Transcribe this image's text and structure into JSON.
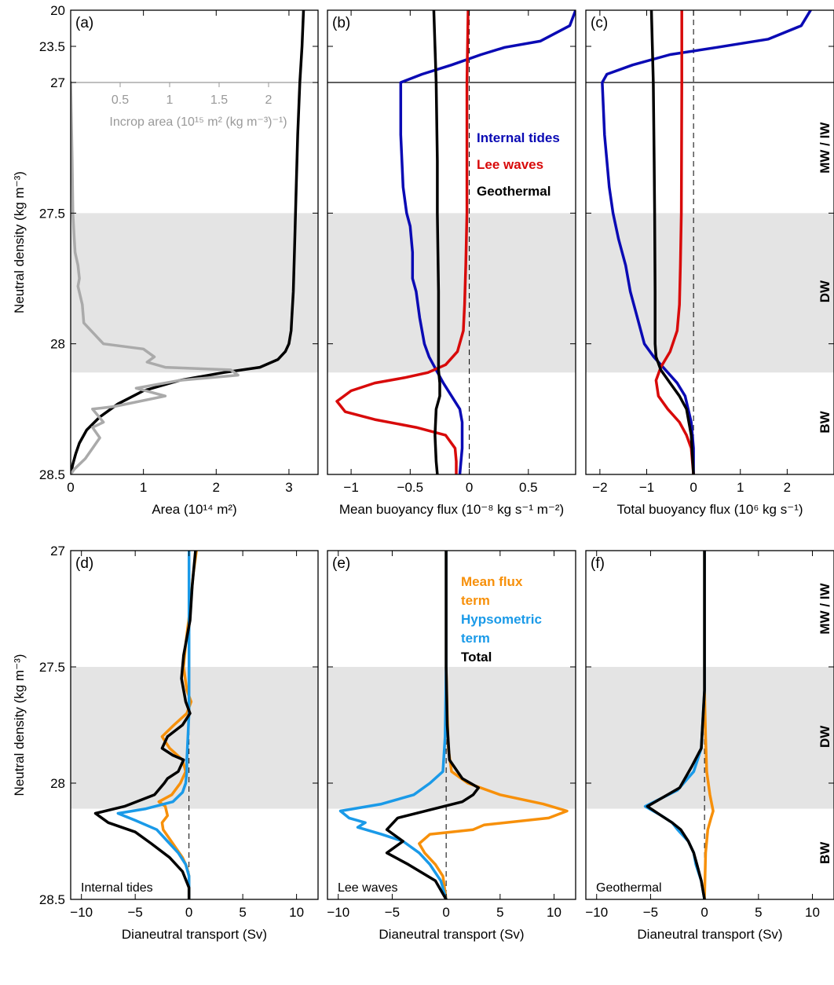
{
  "colors": {
    "band": "#e4e4e4",
    "axis": "#000000",
    "internal_tides": "#0a0ab4",
    "lee_waves": "#d80a0a",
    "geothermal": "#000000",
    "mean_flux_term": "#f7900a",
    "hypsometric_term": "#1a9ae8",
    "total": "#000000",
    "incrop": "#aaaaaa"
  },
  "water_masses": [
    "MW / IW",
    "DW",
    "BW"
  ],
  "common": {
    "ylabel": "Neutral density (kg m⁻³)",
    "dianeutral_xlabel": "Dianeutral transport (Sv)"
  },
  "chart_data": [
    {
      "id": "a",
      "panel_label": "(a)",
      "type": "line",
      "xlabel": "Area (10¹⁴ m²)",
      "xlim": [
        0,
        3.4
      ],
      "xticks": [
        "0",
        "1",
        "2",
        "3"
      ],
      "ylim": [
        28.5,
        20
      ],
      "y_axis_break": {
        "upper": [
          "20",
          "23.5",
          "27"
        ],
        "lower": [
          "27.5",
          "28",
          "28.5"
        ]
      },
      "inset_axis": {
        "label": "Incrop area (10¹⁵ m² (kg m⁻³)⁻¹)",
        "ticks": [
          "0.5",
          "1",
          "1.5",
          "2"
        ],
        "xlim": [
          0,
          2.5
        ]
      },
      "series": [
        {
          "name": "Area",
          "color_key": "axis",
          "x": [
            3.2,
            3.18,
            3.15,
            3.12,
            3.1,
            3.08,
            3.06,
            3.04,
            3.03,
            3.0,
            2.95,
            2.85,
            2.6,
            2.1,
            1.5,
            1.0,
            0.65,
            0.4,
            0.22,
            0.12,
            0.07,
            0.03,
            0.0
          ],
          "y": [
            20,
            23.5,
            27,
            27.2,
            27.4,
            27.6,
            27.8,
            27.9,
            27.95,
            28.0,
            28.03,
            28.06,
            28.09,
            28.11,
            28.14,
            28.18,
            28.23,
            28.28,
            28.33,
            28.38,
            28.42,
            28.46,
            28.5
          ]
        },
        {
          "name": "Incrop area",
          "color_key": "incrop",
          "x": [
            0.0,
            0.02,
            0.03,
            0.05,
            0.06,
            0.1,
            0.12,
            0.1,
            0.16,
            0.18,
            0.45,
            1.0,
            1.15,
            1.05,
            1.3,
            2.2,
            2.3,
            1.5,
            0.9,
            1.3,
            0.6,
            0.3,
            0.45,
            0.3,
            0.4,
            0.3,
            0.2,
            0.05,
            0.0
          ],
          "y": [
            27.0,
            27.3,
            27.5,
            27.6,
            27.65,
            27.7,
            27.75,
            27.78,
            27.85,
            27.92,
            28.0,
            28.02,
            28.05,
            28.07,
            28.09,
            28.1,
            28.12,
            28.14,
            28.17,
            28.2,
            28.24,
            28.25,
            28.3,
            28.32,
            28.36,
            28.4,
            28.44,
            28.48,
            28.5
          ]
        }
      ]
    },
    {
      "id": "b",
      "panel_label": "(b)",
      "type": "line",
      "xlabel": "Mean buoyancy flux (10⁻⁸ kg s⁻¹ m⁻²)",
      "xlim": [
        -1.2,
        0.9
      ],
      "xticks": [
        "-1",
        "-0.5",
        "0",
        "0.5"
      ],
      "ylim": [
        28.5,
        20
      ],
      "y_axis_break": {
        "upper": [
          "20",
          "23.5",
          "27"
        ],
        "lower": [
          "27.5",
          "28",
          "28.5"
        ]
      },
      "legend": [
        "Internal tides",
        "Lee waves",
        "Geothermal"
      ],
      "series": [
        {
          "name": "Internal tides",
          "color_key": "internal_tides",
          "x": [
            0.9,
            0.85,
            0.6,
            0.3,
            0.1,
            -0.15,
            -0.4,
            -0.58,
            -0.58,
            -0.56,
            -0.53,
            -0.5,
            -0.48,
            -0.48,
            -0.45,
            -0.42,
            -0.38,
            -0.34,
            -0.28,
            -0.22,
            -0.15,
            -0.08,
            -0.06,
            -0.06,
            -0.08
          ],
          "y": [
            20,
            21.5,
            23.0,
            23.6,
            24.3,
            25.3,
            26.2,
            27.0,
            27.2,
            27.4,
            27.5,
            27.55,
            27.65,
            27.75,
            27.8,
            27.9,
            28.0,
            28.05,
            28.1,
            28.15,
            28.2,
            28.25,
            28.3,
            28.4,
            28.5
          ]
        },
        {
          "name": "Lee waves",
          "color_key": "lee_waves",
          "x": [
            -0.01,
            -0.02,
            -0.02,
            -0.03,
            -0.04,
            -0.05,
            -0.1,
            -0.2,
            -0.35,
            -0.55,
            -0.8,
            -1.0,
            -1.12,
            -1.05,
            -0.8,
            -0.45,
            -0.2,
            -0.12,
            -0.11,
            -0.11
          ],
          "y": [
            20,
            27.0,
            27.5,
            27.7,
            27.85,
            27.95,
            28.03,
            28.08,
            28.11,
            28.13,
            28.15,
            28.18,
            28.22,
            28.26,
            28.29,
            28.32,
            28.35,
            28.4,
            28.45,
            28.5
          ]
        },
        {
          "name": "Geothermal",
          "color_key": "geothermal",
          "x": [
            -0.3,
            -0.29,
            -0.28,
            -0.27,
            -0.27,
            -0.26,
            -0.26,
            -0.26,
            -0.25,
            -0.25,
            -0.28,
            -0.29,
            -0.28,
            -0.27
          ],
          "y": [
            20,
            23.5,
            27.0,
            27.3,
            27.5,
            27.8,
            28.0,
            28.1,
            28.15,
            28.2,
            28.25,
            28.35,
            28.45,
            28.5
          ]
        }
      ]
    },
    {
      "id": "c",
      "panel_label": "(c)",
      "type": "line",
      "xlabel": "Total buoyancy flux (10⁶ kg s⁻¹)",
      "xlim": [
        -2.3,
        3.0
      ],
      "xticks": [
        "-2",
        "-1",
        "0",
        "1",
        "2"
      ],
      "ylim": [
        28.5,
        20
      ],
      "y_axis_break": {
        "upper": [
          "20",
          "23.5",
          "27"
        ],
        "lower": [
          "27.5",
          "28",
          "28.5"
        ]
      },
      "series": [
        {
          "name": "Internal tides",
          "color_key": "internal_tides",
          "x": [
            2.5,
            2.3,
            1.6,
            0.5,
            -0.5,
            -1.3,
            -1.85,
            -1.95,
            -1.9,
            -1.8,
            -1.72,
            -1.6,
            -1.45,
            -1.35,
            -1.2,
            -1.05,
            -0.85,
            -0.6,
            -0.35,
            -0.18,
            -0.05,
            0.0,
            0.0
          ],
          "y": [
            20,
            21.5,
            22.8,
            23.6,
            24.3,
            25.3,
            26.2,
            27.0,
            27.2,
            27.4,
            27.5,
            27.6,
            27.7,
            27.8,
            27.9,
            28.0,
            28.05,
            28.1,
            28.15,
            28.2,
            28.3,
            28.4,
            28.5
          ]
        },
        {
          "name": "Lee waves",
          "color_key": "lee_waves",
          "x": [
            -0.25,
            -0.25,
            -0.26,
            -0.28,
            -0.3,
            -0.35,
            -0.5,
            -0.7,
            -0.8,
            -0.75,
            -0.55,
            -0.3,
            -0.15,
            -0.05,
            0.0
          ],
          "y": [
            20,
            27.0,
            27.5,
            27.7,
            27.85,
            27.95,
            28.03,
            28.09,
            28.14,
            28.2,
            28.25,
            28.3,
            28.35,
            28.4,
            28.5
          ]
        },
        {
          "name": "Geothermal",
          "color_key": "geothermal",
          "x": [
            -0.9,
            -0.88,
            -0.86,
            -0.84,
            -0.83,
            -0.82,
            -0.82,
            -0.8,
            -0.7,
            -0.5,
            -0.3,
            -0.15,
            -0.05,
            0.0
          ],
          "y": [
            20,
            23.5,
            27.0,
            27.3,
            27.5,
            27.8,
            28.0,
            28.05,
            28.1,
            28.15,
            28.2,
            28.25,
            28.35,
            28.5
          ]
        }
      ]
    },
    {
      "id": "d",
      "panel_label": "(d)",
      "panel_caption": "Internal tides",
      "type": "line",
      "xlabel": "Dianeutral transport (Sv)",
      "xlim": [
        -11,
        12
      ],
      "xticks": [
        "-10",
        "-5",
        "0",
        "5",
        "10"
      ],
      "ylim": [
        28.5,
        27
      ],
      "yticks": [
        "27",
        "27.5",
        "28",
        "28.5"
      ],
      "series": [
        {
          "name": "Mean flux term",
          "color_key": "mean_flux_term",
          "x": [
            0.7,
            0.4,
            0.1,
            -0.3,
            -0.5,
            -0.2,
            0.2,
            -0.2,
            -1.4,
            -2.5,
            -1.8,
            -0.6,
            -0.3,
            -0.8,
            -1.6,
            -2.8,
            -2.2,
            -2.0,
            -2.5,
            -2.4,
            -1.8,
            -1.2,
            -0.6,
            -0.2,
            0.0,
            0.0,
            0.0
          ],
          "y": [
            27.0,
            27.1,
            27.25,
            27.4,
            27.5,
            27.6,
            27.65,
            27.7,
            27.75,
            27.8,
            27.85,
            27.9,
            27.95,
            28.0,
            28.05,
            28.08,
            28.1,
            28.14,
            28.17,
            28.2,
            28.24,
            28.28,
            28.32,
            28.36,
            28.4,
            28.45,
            28.5
          ]
        },
        {
          "name": "Hypsometric term",
          "color_key": "hypsometric_term",
          "x": [
            0.0,
            0.0,
            0.0,
            0.0,
            -0.1,
            -0.2,
            -0.2,
            -0.3,
            -0.6,
            -1.5,
            -4.0,
            -6.6,
            -5.0,
            -3.0,
            -2.0,
            -1.0,
            -0.3,
            0.0,
            0.0
          ],
          "y": [
            27.0,
            27.3,
            27.5,
            27.7,
            27.8,
            27.9,
            27.95,
            28.0,
            28.04,
            28.08,
            28.11,
            28.13,
            28.16,
            28.2,
            28.25,
            28.3,
            28.35,
            28.4,
            28.5
          ]
        },
        {
          "name": "Total",
          "color_key": "total",
          "x": [
            0.6,
            0.3,
            0.1,
            -0.5,
            -0.7,
            -0.3,
            0.1,
            -0.6,
            -2.0,
            -2.5,
            -1.5,
            -0.5,
            -1.0,
            -2.0,
            -2.3,
            -3.2,
            -6.0,
            -8.7,
            -7.5,
            -5.0,
            -3.5,
            -1.8,
            -0.6,
            0.0,
            0.0
          ],
          "y": [
            27.0,
            27.15,
            27.3,
            27.45,
            27.55,
            27.65,
            27.7,
            27.75,
            27.8,
            27.85,
            27.88,
            27.9,
            27.95,
            27.98,
            28.0,
            28.05,
            28.1,
            28.13,
            28.17,
            28.21,
            28.26,
            28.32,
            28.38,
            28.45,
            28.5
          ]
        }
      ]
    },
    {
      "id": "e",
      "panel_label": "(e)",
      "panel_caption": "Lee waves",
      "type": "line",
      "xlabel": "Dianeutral transport (Sv)",
      "xlim": [
        -11,
        12
      ],
      "xticks": [
        "-10",
        "-5",
        "0",
        "5",
        "10"
      ],
      "ylim": [
        28.5,
        27
      ],
      "yticks": [
        "27",
        "27.5",
        "28",
        "28.5"
      ],
      "legend": [
        "Mean flux term",
        "Hypsometric term",
        "Total"
      ],
      "series": [
        {
          "name": "Mean flux term",
          "color_key": "mean_flux_term",
          "x": [
            0.0,
            0.0,
            0.1,
            0.2,
            0.5,
            2.0,
            5.0,
            9.0,
            11.2,
            9.5,
            3.5,
            2.5,
            -1.5,
            -2.5,
            -2.0,
            -1.0,
            -0.3,
            0.0
          ],
          "y": [
            27.0,
            27.5,
            27.7,
            27.85,
            27.95,
            28.0,
            28.05,
            28.09,
            28.12,
            28.15,
            28.18,
            28.2,
            28.22,
            28.26,
            28.3,
            28.35,
            28.4,
            28.5
          ]
        },
        {
          "name": "Hypsometric term",
          "color_key": "hypsometric_term",
          "x": [
            0.0,
            0.0,
            -0.1,
            -0.3,
            -1.5,
            -3.0,
            -6.0,
            -9.8,
            -9.0,
            -7.5,
            -8.2,
            -6.0,
            -4.0,
            -2.5,
            -1.5,
            -0.5,
            0.0
          ],
          "y": [
            27.0,
            27.5,
            27.8,
            27.95,
            28.0,
            28.05,
            28.09,
            28.12,
            28.15,
            28.17,
            28.19,
            28.22,
            28.25,
            28.3,
            28.35,
            28.42,
            28.5
          ]
        },
        {
          "name": "Total",
          "color_key": "total",
          "x": [
            0.0,
            0.0,
            0.1,
            0.3,
            1.5,
            3.0,
            2.5,
            1.5,
            -4.5,
            -5.5,
            -4.0,
            -5.5,
            -3.5,
            -1.0,
            0.0
          ],
          "y": [
            27.0,
            27.5,
            27.75,
            27.9,
            27.98,
            28.02,
            28.05,
            28.08,
            28.15,
            28.2,
            28.25,
            28.3,
            28.35,
            28.42,
            28.5
          ]
        }
      ]
    },
    {
      "id": "f",
      "panel_label": "(f)",
      "panel_caption": "Geothermal",
      "type": "line",
      "xlabel": "Dianeutral transport (Sv)",
      "xlim": [
        -11,
        12
      ],
      "xticks": [
        "-10",
        "-5",
        "0",
        "5",
        "10"
      ],
      "ylim": [
        28.5,
        27
      ],
      "yticks": [
        "27",
        "27.5",
        "28",
        "28.5"
      ],
      "series": [
        {
          "name": "Mean flux term",
          "color_key": "mean_flux_term",
          "x": [
            0.0,
            0.0,
            0.1,
            0.2,
            0.5,
            0.8,
            0.6,
            0.3,
            0.1,
            0.0
          ],
          "y": [
            27.0,
            27.6,
            27.8,
            27.95,
            28.05,
            28.12,
            28.15,
            28.2,
            28.3,
            28.5
          ]
        },
        {
          "name": "Hypsometric term",
          "color_key": "hypsometric_term",
          "x": [
            0.0,
            0.0,
            -0.3,
            -1.0,
            -2.5,
            -5.5,
            -4.0,
            -3.0,
            -2.5,
            -1.5,
            -1.0,
            -0.8,
            -0.3,
            0.0
          ],
          "y": [
            27.0,
            27.6,
            27.85,
            27.95,
            28.03,
            28.1,
            28.14,
            28.17,
            28.2,
            28.25,
            28.3,
            28.35,
            28.42,
            28.5
          ]
        },
        {
          "name": "Total",
          "color_key": "total",
          "x": [
            0.0,
            0.0,
            -0.3,
            -1.2,
            -2.3,
            -5.3,
            -4.0,
            -3.0,
            -2.2,
            -1.5,
            -1.0,
            -0.7,
            -0.3,
            0.0
          ],
          "y": [
            27.0,
            27.6,
            27.85,
            27.93,
            28.02,
            28.1,
            28.14,
            28.17,
            28.2,
            28.25,
            28.3,
            28.35,
            28.42,
            28.5
          ]
        }
      ]
    }
  ]
}
